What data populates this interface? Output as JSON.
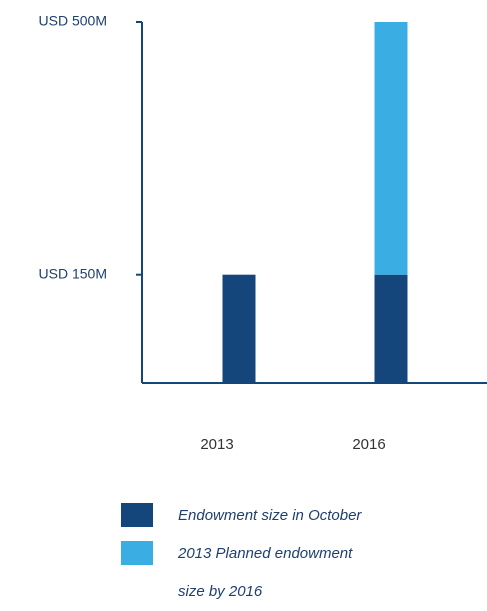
{
  "chart_data": {
    "type": "stacked_bar",
    "categories": [
      "2013",
      "2016"
    ],
    "series": [
      {
        "name": "Endowment size in October",
        "color": "#14467c",
        "values": [
          150,
          150
        ]
      },
      {
        "name": "2013 Planned endowment size by 2016",
        "color": "#3aaee2",
        "values": [
          null,
          350
        ]
      }
    ],
    "ylim": [
      0,
      500
    ],
    "yticks": [
      {
        "value": 150,
        "label": "USD 150M"
      },
      {
        "value": 500,
        "label": "USD 500M"
      }
    ],
    "legend": "bottom"
  }
}
